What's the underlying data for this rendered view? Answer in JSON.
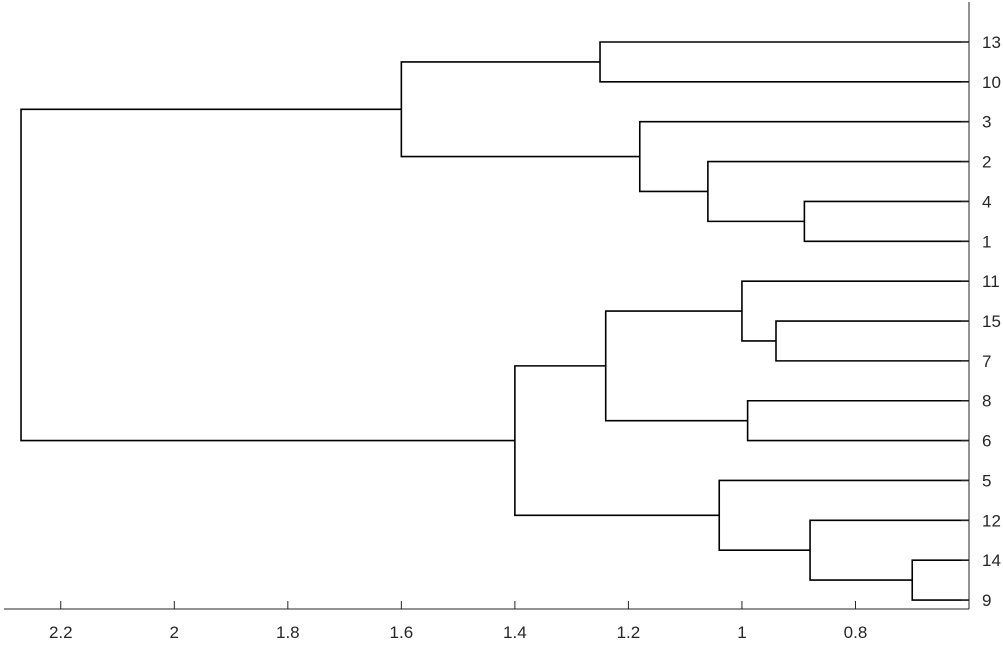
{
  "chart_data": {
    "type": "dendrogram",
    "orientation": "left",
    "title": "",
    "xlabel": "",
    "ylabel": "",
    "xlim": [
      0.6,
      2.3
    ],
    "x_reversed": true,
    "x_ticks": [
      2.2,
      2,
      1.8,
      1.6,
      1.4,
      1.2,
      1,
      0.8
    ],
    "x_tick_labels": [
      "2.2",
      "2",
      "1.8",
      "1.6",
      "1.4",
      "1.2",
      "1",
      "0.8"
    ],
    "leaf_order": [
      "13",
      "10",
      "3",
      "2",
      "4",
      "1",
      "11",
      "15",
      "7",
      "8",
      "6",
      "5",
      "12",
      "14",
      "9"
    ],
    "merges": [
      {
        "id": "m1",
        "left": "14",
        "right": "9",
        "height": 0.7
      },
      {
        "id": "m2",
        "left": "4",
        "right": "1",
        "height": 0.89
      },
      {
        "id": "m3",
        "left": "12",
        "right": "m1",
        "height": 0.88
      },
      {
        "id": "m4",
        "left": "15",
        "right": "7",
        "height": 0.94
      },
      {
        "id": "m5",
        "left": "8",
        "right": "6",
        "height": 0.99
      },
      {
        "id": "m6",
        "left": "11",
        "right": "m4",
        "height": 1.0
      },
      {
        "id": "m7",
        "left": "5",
        "right": "m3",
        "height": 1.04
      },
      {
        "id": "m8",
        "left": "2",
        "right": "m2",
        "height": 1.06
      },
      {
        "id": "m9",
        "left": "3",
        "right": "m8",
        "height": 1.18
      },
      {
        "id": "m10",
        "left": "m6",
        "right": "m5",
        "height": 1.24
      },
      {
        "id": "m11",
        "left": "13",
        "right": "10",
        "height": 1.25
      },
      {
        "id": "m12",
        "left": "m10",
        "right": "m7",
        "height": 1.4
      },
      {
        "id": "m13",
        "left": "m11",
        "right": "m9",
        "height": 1.6
      },
      {
        "id": "m14",
        "left": "m13",
        "right": "m12",
        "height": 2.27
      }
    ],
    "leaf_height": 0.6,
    "grid": false,
    "legend": "none"
  }
}
